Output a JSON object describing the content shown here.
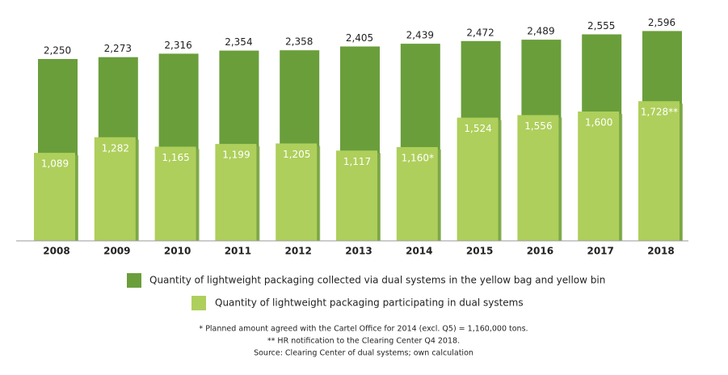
{
  "chart_data": {
    "type": "overlap-bar",
    "categories": [
      "2008",
      "2009",
      "2010",
      "2011",
      "2012",
      "2013",
      "2014",
      "2015",
      "2016",
      "2017",
      "2018"
    ],
    "series": [
      {
        "name": "Quantity of lightweight packaging collected via dual systems in the yellow bag and yellow bin",
        "color": "#6a9e3b",
        "values": [
          2250,
          2273,
          2316,
          2354,
          2358,
          2405,
          2439,
          2472,
          2489,
          2555,
          2596
        ],
        "value_labels": [
          "2,250",
          "2,273",
          "2,316",
          "2,354",
          "2,358",
          "2,405",
          "2,439",
          "2,472",
          "2,489",
          "2,555",
          "2,596"
        ]
      },
      {
        "name": "Quantity of lightweight packaging participating in dual systems",
        "color": "#aecf5b",
        "values": [
          1089,
          1282,
          1165,
          1199,
          1205,
          1117,
          1160,
          1524,
          1556,
          1600,
          1728
        ],
        "value_labels": [
          "1,089",
          "1,282",
          "1,165",
          "1,199",
          "1,205",
          "1,117",
          "1,160*",
          "1,524",
          "1,556",
          "1,600",
          "1,728**"
        ]
      }
    ],
    "notes": [
      "* Planned amount agreed with the Cartel Office for 2014 (excl. Q5) = 1,160,000 tons.",
      "** HR notification to the Clearing Center Q4 2018.",
      "Source: Clearing Center of dual systems; own calculation"
    ]
  }
}
